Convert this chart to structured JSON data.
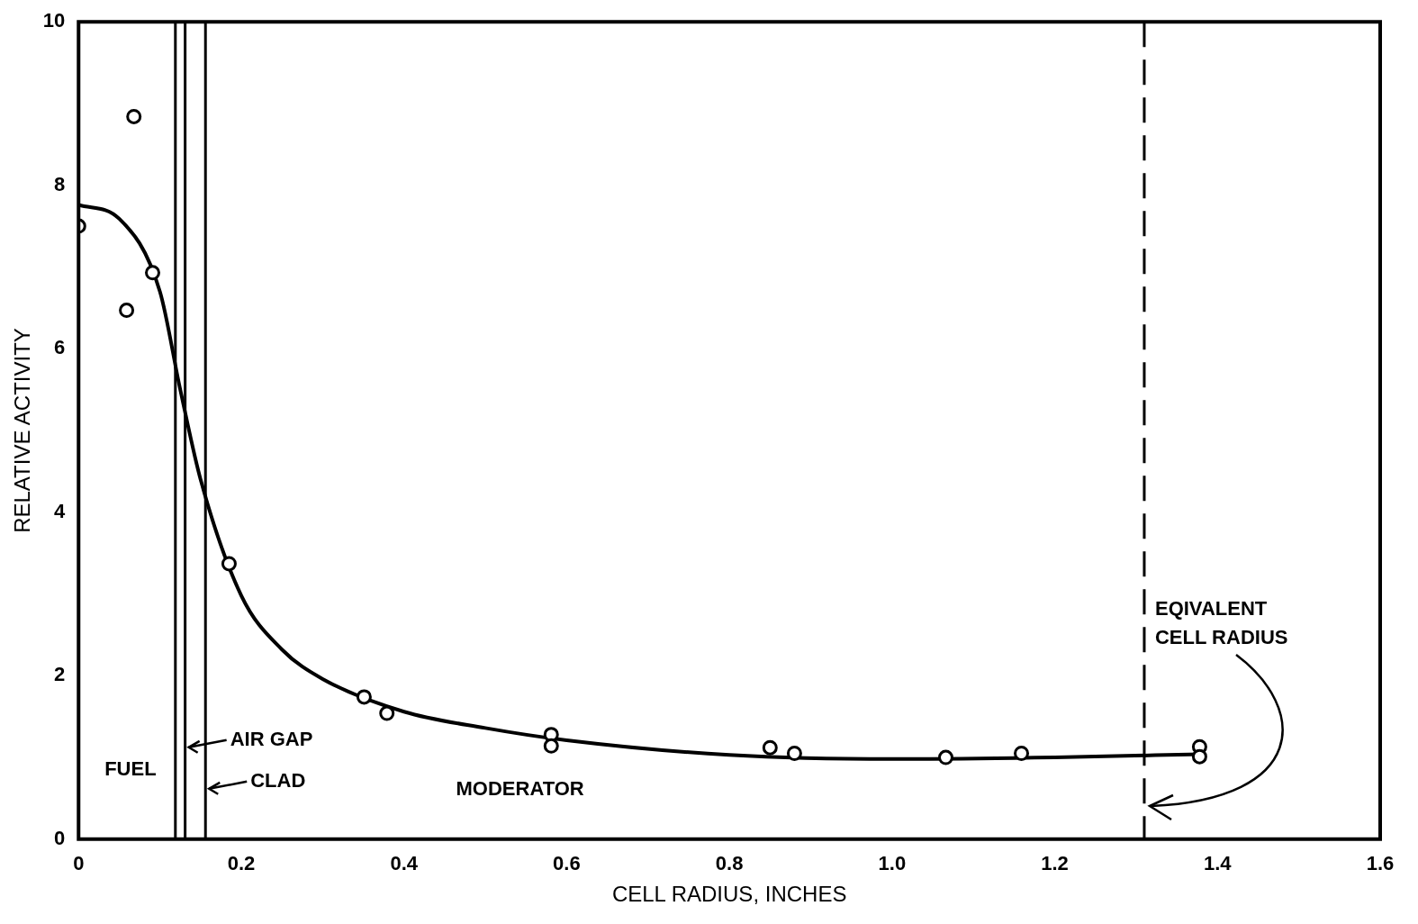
{
  "chart_data": {
    "type": "scatter",
    "xlabel": "CELL RADIUS, INCHES",
    "ylabel": "RELATIVE ACTIVITY",
    "xlim": [
      0,
      1.6
    ],
    "xticks": [
      0,
      0.2,
      0.4,
      0.6,
      0.8,
      {
        "value": 1.0,
        "label": "1.0"
      },
      1.2,
      1.4,
      1.6
    ],
    "ylim": [
      0,
      10
    ],
    "yticks": [
      0,
      2,
      4,
      6,
      8,
      10
    ],
    "grid": false,
    "legend": false,
    "marker": "circle",
    "series": [
      {
        "type": "scatter",
        "color": "#000000",
        "x": [
          0,
          0.068,
          0.059,
          0.091,
          0.185,
          0.351,
          0.379,
          0.581,
          0.581,
          0.85,
          0.88,
          1.066,
          1.159,
          1.378,
          1.378
        ],
        "values": [
          7.5,
          8.84,
          6.47,
          6.93,
          3.37,
          1.74,
          1.54,
          1.28,
          1.14,
          1.12,
          1.05,
          1.0,
          1.05,
          1.13,
          1.01
        ]
      },
      {
        "type": "line",
        "color": "#000000",
        "marker": "none",
        "x": [
          0,
          0.05,
          0.1,
          0.125,
          0.15,
          0.2,
          0.25,
          0.3,
          0.4,
          0.5,
          0.6,
          0.8,
          1.0,
          1.2,
          1.38
        ],
        "values": [
          7.76,
          7.59,
          6.7,
          5.5,
          4.4,
          2.98,
          2.32,
          1.96,
          1.56,
          1.36,
          1.21,
          1.03,
          0.98,
          1.0,
          1.04
        ]
      }
    ],
    "ref_lines": [
      {
        "axis": "x",
        "value": 0.119,
        "color": "#000000",
        "line_style": "solid"
      },
      {
        "axis": "x",
        "value": 0.131,
        "color": "#000000",
        "line_style": "solid",
        "label": "AIR GAP"
      },
      {
        "axis": "x",
        "value": 0.156,
        "color": "#000000",
        "line_style": "solid",
        "label": "CLAD"
      },
      {
        "axis": "x",
        "value": 1.31,
        "color": "#000000",
        "line_style": "dashed",
        "label": "EQIVALENT CELL RADIUS"
      }
    ],
    "annotations": [
      "FUEL",
      "MODERATOR"
    ]
  }
}
